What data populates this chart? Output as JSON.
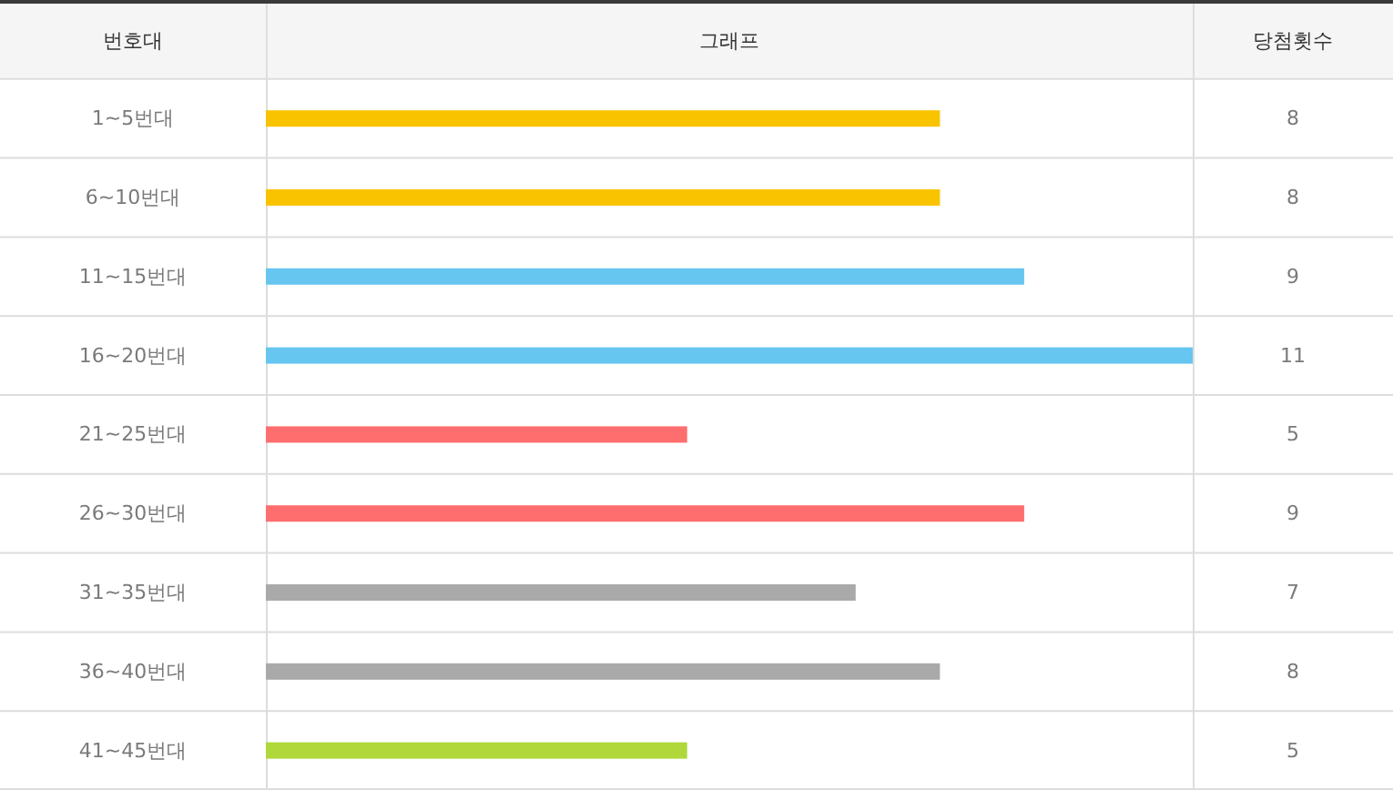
{
  "chart_data": {
    "type": "bar",
    "orientation": "horizontal",
    "title": "그래프",
    "ylabel": "번호대",
    "xlabel": "당첨횟수",
    "categories": [
      "1~5번대",
      "6~10번대",
      "11~15번대",
      "16~20번대",
      "21~25번대",
      "26~30번대",
      "31~35번대",
      "36~40번대",
      "41~45번대"
    ],
    "values": [
      8,
      8,
      9,
      11,
      5,
      9,
      7,
      8,
      5
    ],
    "colors": [
      "#fac300",
      "#fac300",
      "#66c6f0",
      "#66c6f0",
      "#ff6e6e",
      "#ff6e6e",
      "#a9a9a9",
      "#a9a9a9",
      "#b0d83a"
    ],
    "data_labels": true
  }
}
